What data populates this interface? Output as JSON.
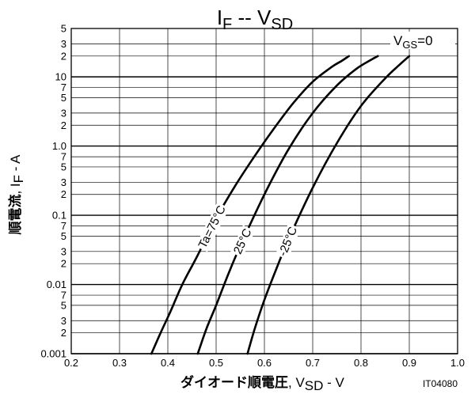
{
  "chart_data": {
    "type": "line",
    "title": {
      "main": "I",
      "main_sub": "F",
      "sep": " -- ",
      "right": "V",
      "right_sub": "SD"
    },
    "x_axis": {
      "label_jp": "ダイオード順電圧",
      "label_sym": ", V",
      "label_sub": "SD",
      "label_unit": " - V",
      "range": [
        0.2,
        1.0
      ],
      "ticks": [
        0.2,
        0.3,
        0.4,
        0.5,
        0.6,
        0.7,
        0.8,
        0.9,
        1.0
      ],
      "tick_labels": [
        "0.2",
        "0.3",
        "0.4",
        "0.5",
        "0.6",
        "0.7",
        "0.8",
        "0.9",
        "1.0"
      ]
    },
    "y_axis": {
      "label_jp": "順電流",
      "label_sym": ", I",
      "label_sub": "F",
      "label_unit": " - A",
      "scale": "log",
      "range": [
        0.001,
        50
      ],
      "tick_labels": [
        {
          "v": 0.001,
          "t": "0.001",
          "major": true
        },
        {
          "v": 0.002,
          "t": "2"
        },
        {
          "v": 0.003,
          "t": "3"
        },
        {
          "v": 0.005,
          "t": "5"
        },
        {
          "v": 0.007,
          "t": "7"
        },
        {
          "v": 0.01,
          "t": "0.01",
          "major": true
        },
        {
          "v": 0.02,
          "t": "2"
        },
        {
          "v": 0.03,
          "t": "3"
        },
        {
          "v": 0.05,
          "t": "5"
        },
        {
          "v": 0.07,
          "t": "7"
        },
        {
          "v": 0.1,
          "t": "0.1",
          "major": true
        },
        {
          "v": 0.2,
          "t": "2"
        },
        {
          "v": 0.3,
          "t": "3"
        },
        {
          "v": 0.5,
          "t": "5"
        },
        {
          "v": 0.7,
          "t": "7"
        },
        {
          "v": 1,
          "t": "1.0",
          "major": true
        },
        {
          "v": 2,
          "t": "2"
        },
        {
          "v": 3,
          "t": "3"
        },
        {
          "v": 5,
          "t": "5"
        },
        {
          "v": 7,
          "t": "7"
        },
        {
          "v": 10,
          "t": "10",
          "major": true
        },
        {
          "v": 20,
          "t": "2"
        },
        {
          "v": 30,
          "t": "3"
        },
        {
          "v": 50,
          "t": "5"
        }
      ]
    },
    "grid": true,
    "annotation": {
      "main": "V",
      "sub": "GS",
      "rest": "=0"
    },
    "figure_code": "IT04080",
    "series": [
      {
        "name": "Ta=75°C",
        "x": [
          0.366,
          0.385,
          0.405,
          0.43,
          0.46,
          0.5,
          0.54,
          0.58,
          0.62,
          0.66,
          0.7,
          0.74,
          0.76,
          0.775
        ],
        "y": [
          0.001,
          0.002,
          0.004,
          0.01,
          0.025,
          0.09,
          0.27,
          0.72,
          1.8,
          4.2,
          8.5,
          14,
          17,
          20
        ]
      },
      {
        "name": "25°C",
        "x": [
          0.462,
          0.48,
          0.5,
          0.525,
          0.55,
          0.6,
          0.65,
          0.7,
          0.75,
          0.79,
          0.82,
          0.835
        ],
        "y": [
          0.001,
          0.0023,
          0.005,
          0.014,
          0.036,
          0.2,
          0.9,
          3.0,
          7.5,
          13,
          17.5,
          20
        ]
      },
      {
        "name": "-25°C",
        "x": [
          0.565,
          0.58,
          0.6,
          0.625,
          0.65,
          0.7,
          0.75,
          0.8,
          0.85,
          0.88,
          0.9
        ],
        "y": [
          0.001,
          0.0023,
          0.006,
          0.017,
          0.045,
          0.25,
          1.1,
          3.8,
          9.5,
          15,
          20
        ]
      }
    ]
  }
}
